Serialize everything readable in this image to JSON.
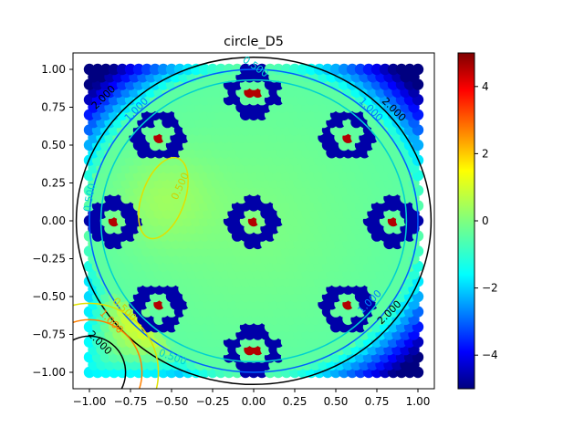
{
  "chart_data": {
    "type": "heatmap",
    "title": "circle_D5",
    "xlim": [
      -1.0,
      1.0
    ],
    "ylim": [
      -1.0,
      1.0
    ],
    "x_ticks": [
      "−1.00",
      "−0.75",
      "−0.50",
      "−0.25",
      "0.00",
      "0.25",
      "0.50",
      "0.75",
      "1.00"
    ],
    "y_ticks": [
      "1.00",
      "0.75",
      "0.50",
      "0.25",
      "0.00",
      "−0.25",
      "−0.50",
      "−0.75",
      "−1.00"
    ],
    "colorbar": {
      "range": [
        -5,
        5
      ],
      "ticks": [
        "4",
        "2",
        "0",
        "−2",
        "−4"
      ],
      "colormap": "jet"
    },
    "colormap_colors": [
      "#00007f",
      "#0000ff",
      "#007fff",
      "#00ffff",
      "#7fff7f",
      "#ffff00",
      "#ff7f00",
      "#ff0000",
      "#7f0000"
    ],
    "mode_centers": [
      [
        0.0,
        0.85
      ],
      [
        0.57,
        0.57
      ],
      [
        0.85,
        0.0
      ],
      [
        0.57,
        -0.57
      ],
      [
        0.0,
        -0.85
      ],
      [
        -0.57,
        -0.57
      ],
      [
        -0.85,
        0.0
      ],
      [
        -0.57,
        0.57
      ],
      [
        0.0,
        0.0
      ]
    ],
    "contour_labels": [
      {
        "text": "2.000",
        "x": -0.9,
        "y": 0.8,
        "color": "#000000",
        "angle": -45
      },
      {
        "text": "1.000",
        "x": -0.7,
        "y": 0.72,
        "color": "#0080ff",
        "angle": -45
      },
      {
        "text": "0.500",
        "x": 0.0,
        "y": 1.0,
        "color": "#00d0d0",
        "angle": 35
      },
      {
        "text": "2.000",
        "x": 0.84,
        "y": 0.72,
        "color": "#000000",
        "angle": 45
      },
      {
        "text": "1.000",
        "x": 0.7,
        "y": 0.72,
        "color": "#0080ff",
        "angle": 45
      },
      {
        "text": "0.500",
        "x": -0.43,
        "y": 0.22,
        "color": "#d0d000",
        "angle": -65
      },
      {
        "text": "0.500",
        "x": -0.98,
        "y": 0.15,
        "color": "#00d0d0",
        "angle": -80
      },
      {
        "text": "0.500",
        "x": -0.8,
        "y": -0.6,
        "color": "#d0d000",
        "angle": 45
      },
      {
        "text": "1.000",
        "x": -0.88,
        "y": -0.68,
        "color": "#ff8000",
        "angle": 45
      },
      {
        "text": "2.000",
        "x": -0.95,
        "y": -0.82,
        "color": "#000000",
        "angle": 45
      },
      {
        "text": "0.500",
        "x": -0.5,
        "y": -0.92,
        "color": "#00d0d0",
        "angle": 20
      },
      {
        "text": "1.000",
        "x": 0.72,
        "y": -0.55,
        "color": "#0080ff",
        "angle": -45
      },
      {
        "text": "2.000",
        "x": 0.84,
        "y": -0.62,
        "color": "#000000",
        "angle": -45
      }
    ]
  }
}
